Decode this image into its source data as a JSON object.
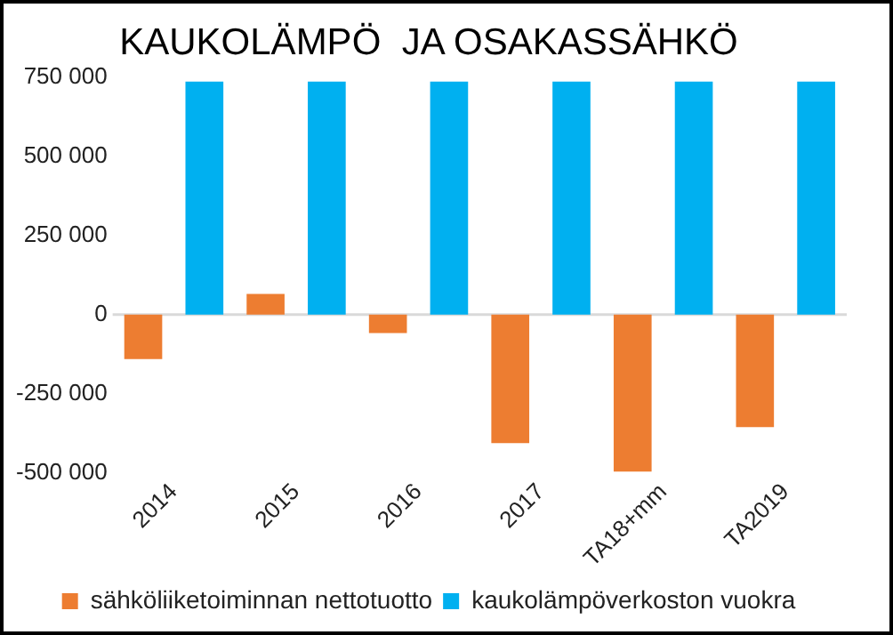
{
  "chart_data": {
    "type": "bar",
    "title": "KAUKOLÄMPÖ  JA OSAKASSÄHKÖ",
    "categories": [
      "2014",
      "2015",
      "2016",
      "2017",
      "TA18+mm",
      "TA2019"
    ],
    "series": [
      {
        "name": "sähköliiketoiminnan nettotuotto",
        "color": "#ed7d31",
        "values": [
          -140000,
          65000,
          -58000,
          -405000,
          -495000,
          -355000
        ]
      },
      {
        "name": "kaukolämpöverkoston vuokra",
        "color": "#00b0f0",
        "values": [
          735000,
          735000,
          735000,
          735000,
          735000,
          735000
        ]
      }
    ],
    "ylim": [
      -500000,
      750000
    ],
    "yticks": [
      -500000,
      -250000,
      0,
      250000,
      500000,
      750000
    ],
    "grid": false,
    "ref_lines": [
      {
        "axis": "y",
        "value": 0,
        "color": "#d9d9d9"
      }
    ],
    "legend": "bottom"
  }
}
